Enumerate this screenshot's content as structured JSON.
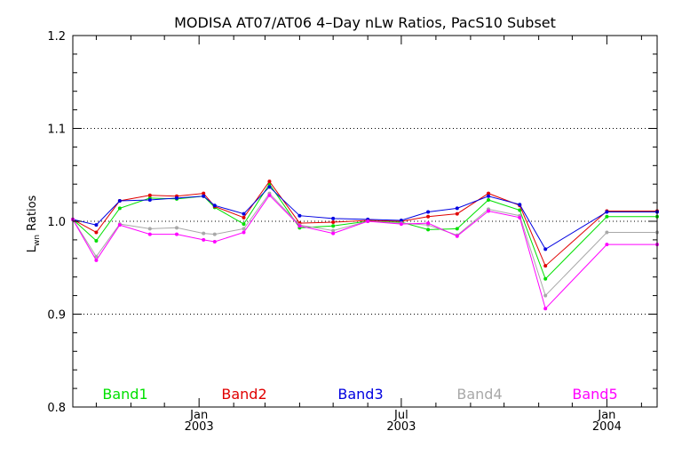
{
  "chart_data": {
    "type": "line",
    "title": "MODISA AT07/AT06 4–Day nLw Ratios, PacS10 Subset",
    "ylabel_main": "L",
    "ylabel_sub": "wn",
    "ylabel_rest": " Ratios",
    "xlim": [
      "2002-09-10",
      "2004-02-15"
    ],
    "ylim": [
      0.8,
      1.2
    ],
    "y_ticks": [
      0.8,
      0.9,
      1.0,
      1.1,
      1.2
    ],
    "y_tick_labels": [
      "0.8",
      "0.9",
      "1.0",
      "1.1",
      "1.2"
    ],
    "y_gridlines": [
      0.9,
      1.0,
      1.1
    ],
    "x_major_ticks": [
      {
        "date": "2003-01-01",
        "month": "Jan",
        "year": "2003"
      },
      {
        "date": "2003-07-01",
        "month": "Jul",
        "year": "2003"
      },
      {
        "date": "2004-01-01",
        "month": "Jan",
        "year": "2004"
      }
    ],
    "x_minor_ticks": [
      "2002-10-01",
      "2002-11-01",
      "2002-12-01",
      "2003-02-01",
      "2003-03-01",
      "2003-04-01",
      "2003-05-01",
      "2003-06-01",
      "2003-08-01",
      "2003-09-01",
      "2003-10-01",
      "2003-11-01",
      "2003-12-01",
      "2004-02-01"
    ],
    "x": [
      "2002-09-10",
      "2002-10-01",
      "2002-10-22",
      "2002-11-18",
      "2002-12-12",
      "2003-01-05",
      "2003-01-15",
      "2003-02-10",
      "2003-03-05",
      "2003-04-01",
      "2003-05-01",
      "2003-06-01",
      "2003-07-01",
      "2003-07-25",
      "2003-08-20",
      "2003-09-17",
      "2003-10-15",
      "2003-11-07",
      "2004-01-01",
      "2004-02-15"
    ],
    "series": [
      {
        "name": "Band1",
        "color": "#00e000",
        "values": [
          1.002,
          0.979,
          1.014,
          1.025,
          1.024,
          1.027,
          1.015,
          0.997,
          1.04,
          0.993,
          0.995,
          1.0,
          0.999,
          0.991,
          0.992,
          1.023,
          1.012,
          0.938,
          1.005,
          1.005
        ]
      },
      {
        "name": "Band2",
        "color": "#e00000",
        "values": [
          1.002,
          0.988,
          1.022,
          1.028,
          1.027,
          1.03,
          1.016,
          1.004,
          1.043,
          0.998,
          0.999,
          1.001,
          1.0,
          1.005,
          1.008,
          1.03,
          1.017,
          0.952,
          1.011,
          1.011
        ]
      },
      {
        "name": "Band3",
        "color": "#0000e0",
        "values": [
          1.002,
          0.996,
          1.022,
          1.023,
          1.025,
          1.027,
          1.017,
          1.008,
          1.037,
          1.006,
          1.003,
          1.002,
          1.001,
          1.01,
          1.014,
          1.027,
          1.018,
          0.97,
          1.01,
          1.01
        ]
      },
      {
        "name": "Band4",
        "color": "#a8a8a8",
        "values": [
          1.002,
          0.962,
          0.997,
          0.992,
          0.993,
          0.987,
          0.986,
          0.992,
          1.03,
          0.996,
          0.99,
          1.0,
          0.998,
          0.996,
          0.985,
          1.013,
          1.006,
          0.92,
          0.988,
          0.988
        ]
      },
      {
        "name": "Band5",
        "color": "#ff00ff",
        "values": [
          1.002,
          0.958,
          0.996,
          0.986,
          0.986,
          0.98,
          0.978,
          0.988,
          1.028,
          0.995,
          0.987,
          1.0,
          0.997,
          0.998,
          0.984,
          1.011,
          1.004,
          0.906,
          0.975,
          0.975
        ]
      }
    ],
    "legend_placement": "bottom-inside",
    "grid": "y-dotted"
  }
}
